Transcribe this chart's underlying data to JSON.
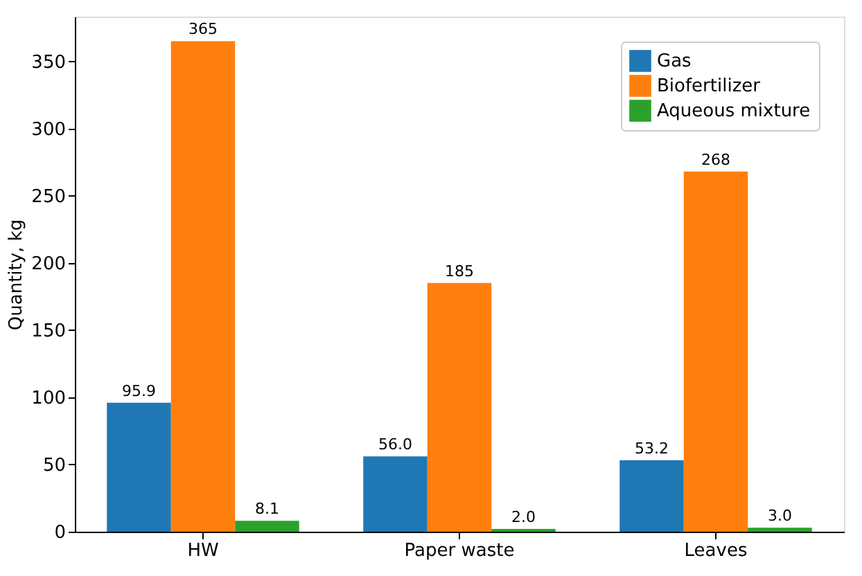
{
  "chart_data": {
    "type": "bar",
    "ylabel": "Quantity, kg",
    "categories": [
      "HW",
      "Paper waste",
      "Leaves"
    ],
    "series": [
      {
        "name": "Gas",
        "color": "#1f77b4",
        "values": [
          95.9,
          56.0,
          53.2
        ],
        "value_labels": [
          "95.9",
          "56.0",
          "53.2"
        ]
      },
      {
        "name": "Biofertilizer",
        "color": "#ff7f0e",
        "values": [
          365,
          185,
          268
        ],
        "value_labels": [
          "365",
          "185",
          "268"
        ]
      },
      {
        "name": "Aqueous mixture",
        "color": "#2ca02c",
        "values": [
          8.1,
          2.0,
          3.0
        ],
        "value_labels": [
          "8.1",
          "2.0",
          "3.0"
        ]
      }
    ],
    "ylim": [
      0,
      383.25
    ],
    "yticks": [
      0,
      50,
      100,
      150,
      200,
      250,
      300,
      350
    ],
    "legend": "top right",
    "grid": false
  }
}
